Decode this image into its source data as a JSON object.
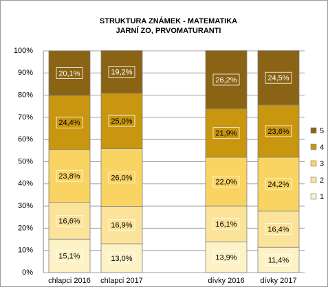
{
  "chart_data": {
    "type": "stacked_bar",
    "title": "STRUKTURA ZNÁMEK - MATEMATIKA",
    "subtitle": "JARNÍ ZO, PRVOMATURANTI",
    "categories": [
      "chlapci 2016",
      "chlapci 2017",
      null,
      "dívky 2016",
      "dívky 2017"
    ],
    "series": [
      {
        "name": "1",
        "color": "#fdf2c6",
        "values": [
          15.1,
          13.0,
          null,
          13.9,
          11.4
        ],
        "value_labels": [
          "15,1%",
          "13,0%",
          null,
          "13,9%",
          "11,4%"
        ]
      },
      {
        "name": "2",
        "color": "#fbe39a",
        "values": [
          16.6,
          16.9,
          null,
          16.1,
          16.4
        ],
        "value_labels": [
          "16,6%",
          "16,9%",
          null,
          "16,1%",
          "16,4%"
        ]
      },
      {
        "name": "3",
        "color": "#f9d462",
        "values": [
          23.8,
          26.0,
          null,
          22.0,
          24.2
        ],
        "value_labels": [
          "23,8%",
          "26,0%",
          null,
          "22,0%",
          "24,2%"
        ]
      },
      {
        "name": "4",
        "color": "#c8960f",
        "values": [
          24.4,
          25.0,
          null,
          21.9,
          23.6
        ],
        "value_labels": [
          "24,4%",
          "25,0%",
          null,
          "21,9%",
          "23,6%"
        ]
      },
      {
        "name": "5",
        "color": "#8a6414",
        "values": [
          20.1,
          19.2,
          null,
          26.2,
          24.5
        ],
        "value_labels": [
          "20,1%",
          "19,2%",
          null,
          "26,2%",
          "24,5%"
        ]
      }
    ],
    "ylim": [
      0,
      100
    ],
    "yticks": [
      {
        "value": 0,
        "label": "0%"
      },
      {
        "value": 10,
        "label": "10%"
      },
      {
        "value": 20,
        "label": "20%"
      },
      {
        "value": 30,
        "label": "30%"
      },
      {
        "value": 40,
        "label": "40%"
      },
      {
        "value": 50,
        "label": "50%"
      },
      {
        "value": 60,
        "label": "60%"
      },
      {
        "value": 70,
        "label": "70%"
      },
      {
        "value": 80,
        "label": "80%"
      },
      {
        "value": 90,
        "label": "90%"
      },
      {
        "value": 100,
        "label": "100%"
      }
    ],
    "grid": true,
    "legend": "right"
  }
}
